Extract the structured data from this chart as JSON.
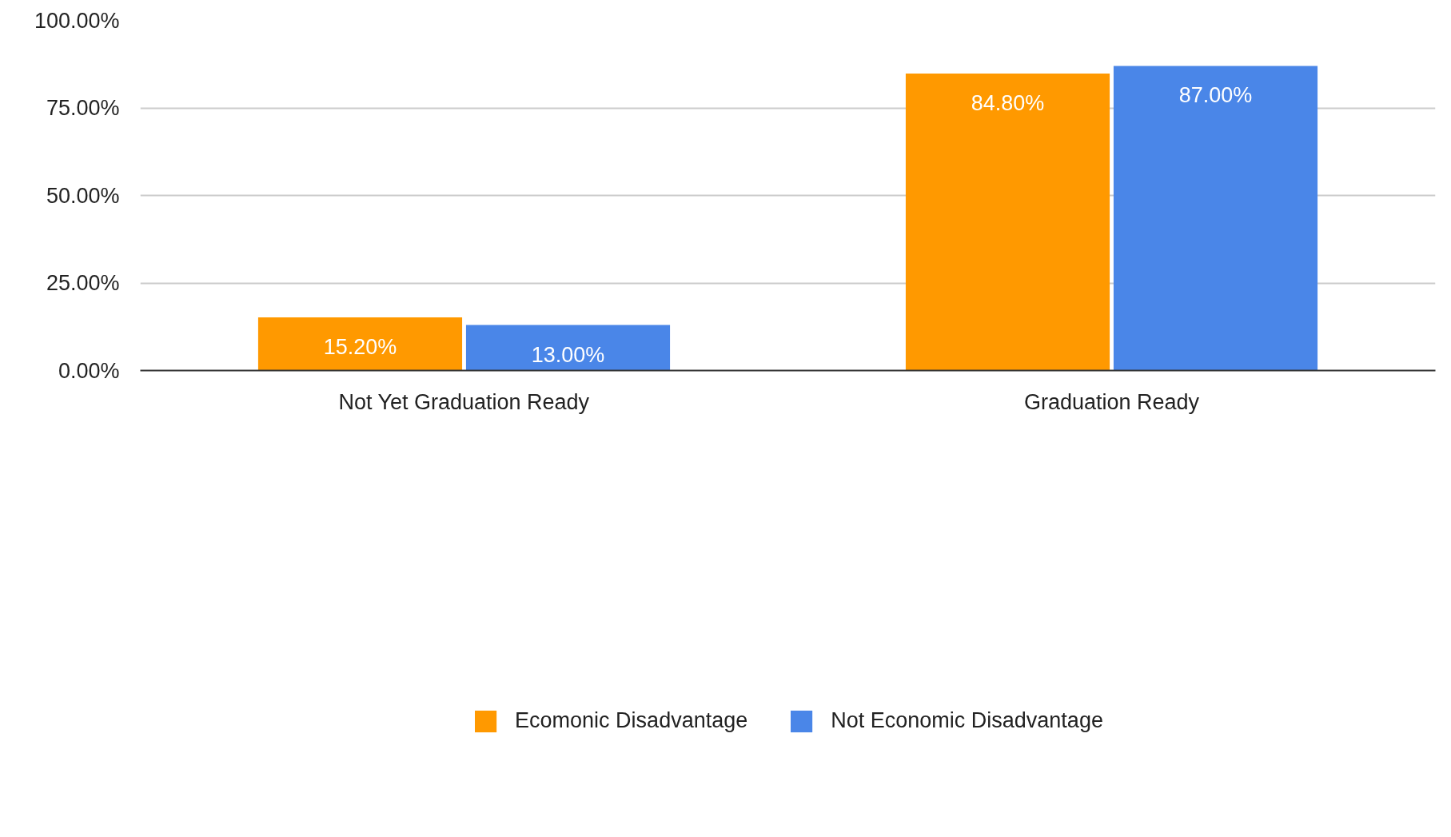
{
  "chart_data": {
    "type": "bar",
    "categories": [
      "Not Yet Graduation Ready",
      "Graduation Ready"
    ],
    "series": [
      {
        "name": "Ecomonic Disadvantage",
        "color": "#ff9900",
        "values": [
          15.2,
          84.8
        ],
        "value_labels": [
          "15.20%",
          "84.80%"
        ]
      },
      {
        "name": "Not Economic Disadvantage",
        "color": "#4a86e8",
        "values": [
          13.0,
          87.0
        ],
        "value_labels": [
          "13.00%",
          "87.00%"
        ]
      }
    ],
    "ylim": [
      0,
      100
    ],
    "yticks": [
      {
        "value": 0,
        "label": "0.00%"
      },
      {
        "value": 25,
        "label": "25.00%"
      },
      {
        "value": 50,
        "label": "50.00%"
      },
      {
        "value": 75,
        "label": "75.00%"
      },
      {
        "value": 100,
        "label": "100.00%"
      }
    ],
    "grid": "y",
    "legend": "bottom"
  }
}
